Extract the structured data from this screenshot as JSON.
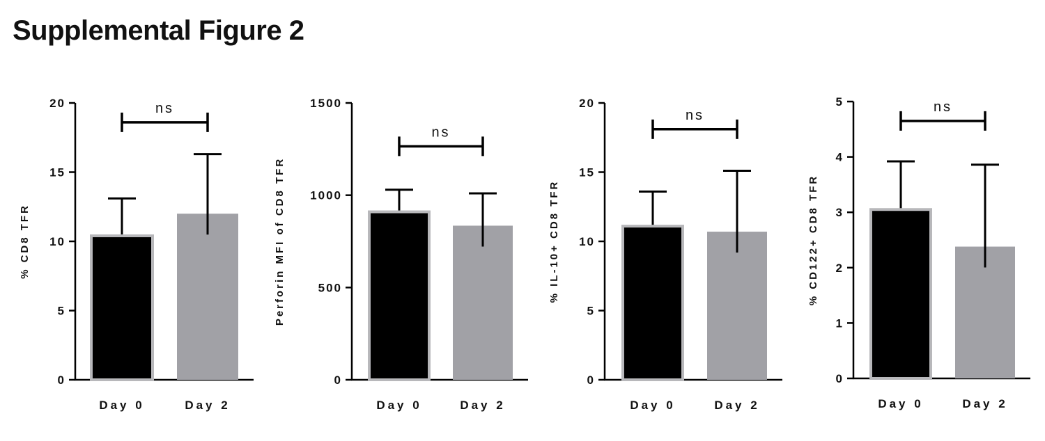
{
  "figure_title": "Supplemental Figure 2",
  "colors": {
    "day0": "#000000",
    "day2": "#a1a1a6",
    "day0_outline": "#b8b8bb",
    "axis": "#000000"
  },
  "chart_data": [
    {
      "type": "bar",
      "categories": [
        "Day 0",
        "Day 2"
      ],
      "values": [
        10.4,
        12.0
      ],
      "errors": [
        2.7,
        4.3
      ],
      "ylabel": "% CD8 TFR",
      "ylim": [
        0,
        20
      ],
      "yticks": [
        0,
        5,
        10,
        15,
        20
      ],
      "significance": {
        "label": "ns",
        "y": 18.6,
        "between": [
          0,
          1
        ]
      }
    },
    {
      "type": "bar",
      "categories": [
        "Day 0",
        "Day 2"
      ],
      "values": [
        910,
        835
      ],
      "errors": [
        120,
        175
      ],
      "ylabel": "Perforin MFI of CD8 TFR",
      "ylim": [
        0,
        1500
      ],
      "yticks": [
        0,
        500,
        1000,
        1500
      ],
      "significance": {
        "label": "ns",
        "y": 1265,
        "between": [
          0,
          1
        ]
      }
    },
    {
      "type": "bar",
      "categories": [
        "Day 0",
        "Day 2"
      ],
      "values": [
        11.1,
        10.7
      ],
      "errors": [
        2.5,
        4.4
      ],
      "ylabel": "% IL-10+ CD8 TFR",
      "ylim": [
        0,
        20
      ],
      "yticks": [
        0,
        5,
        10,
        15,
        20
      ],
      "significance": {
        "label": "ns",
        "y": 18.1,
        "between": [
          0,
          1
        ]
      }
    },
    {
      "type": "bar",
      "categories": [
        "Day 0",
        "Day 2"
      ],
      "values": [
        3.05,
        2.38
      ],
      "errors": [
        0.87,
        1.48
      ],
      "ylabel": "% CD122+ CD8 TFR",
      "ylim": [
        0,
        5
      ],
      "yticks": [
        0,
        1,
        2,
        3,
        4,
        5
      ],
      "significance": {
        "label": "ns",
        "y": 4.65,
        "between": [
          0,
          1
        ]
      }
    }
  ]
}
